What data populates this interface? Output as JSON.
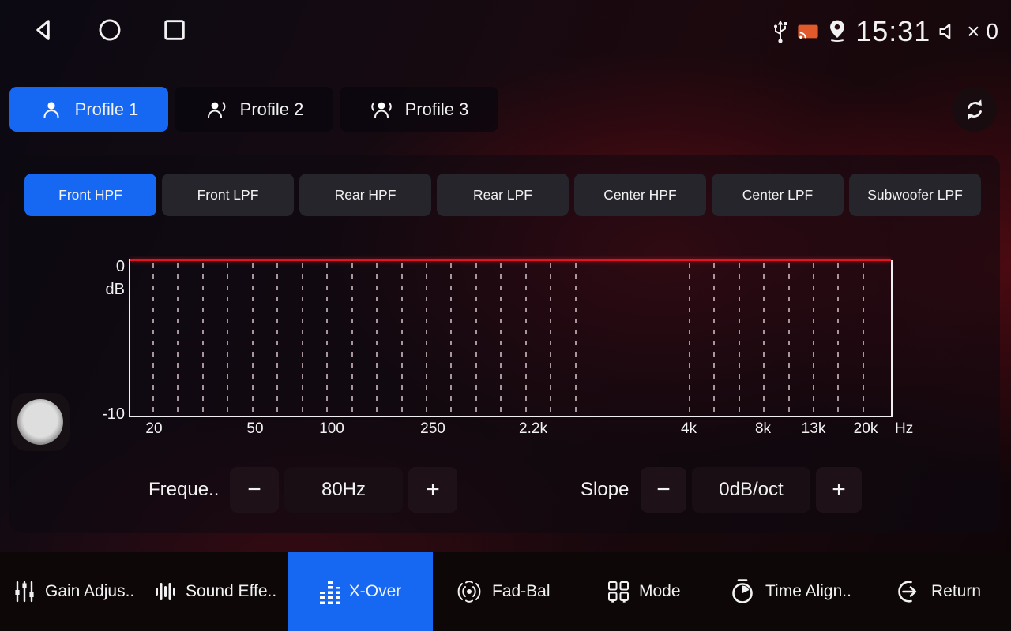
{
  "status_bar": {
    "time": "15:31",
    "volume_count": "× 0"
  },
  "profile_bar": {
    "profiles": [
      {
        "label": "Profile 1",
        "active": true
      },
      {
        "label": "Profile 2",
        "active": false
      },
      {
        "label": "Profile 3",
        "active": false
      }
    ]
  },
  "filter_tabs": [
    {
      "label": "Front HPF",
      "active": true
    },
    {
      "label": "Front LPF",
      "active": false
    },
    {
      "label": "Rear HPF",
      "active": false
    },
    {
      "label": "Rear LPF",
      "active": false
    },
    {
      "label": "Center HPF",
      "active": false
    },
    {
      "label": "Center LPF",
      "active": false
    },
    {
      "label": "Subwoofer LPF",
      "active": false
    }
  ],
  "chart_data": {
    "type": "line",
    "ylabel": "dB",
    "y_ticks": [
      "0",
      "-10"
    ],
    "ylim": [
      -10,
      0
    ],
    "x_unit": "Hz",
    "x_scale": "log",
    "x_tick_labels": [
      "20",
      "50",
      "100",
      "250",
      "2.2k",
      "4k",
      "8k",
      "13k",
      "20k"
    ],
    "x": [
      20,
      50,
      100,
      250,
      2200,
      4000,
      8000,
      13000,
      20000
    ],
    "series": [
      {
        "name": "Front HPF response",
        "values": [
          0,
          0,
          0,
          0,
          0,
          0,
          0,
          0,
          0
        ],
        "color": "#e01422"
      }
    ],
    "grid": "dashed-vertical",
    "legend": "none"
  },
  "controls": {
    "frequency": {
      "label": "Freque..",
      "value": "80Hz",
      "minus": "−",
      "plus": "+"
    },
    "slope": {
      "label": "Slope",
      "value": "0dB/oct",
      "minus": "−",
      "plus": "+"
    }
  },
  "bottom_nav": [
    {
      "label": "Gain Adjus..",
      "icon": "gain-sliders-icon",
      "active": false
    },
    {
      "label": "Sound Effe..",
      "icon": "sound-effect-bars-icon",
      "active": false
    },
    {
      "label": "X-Over",
      "icon": "equalizer-bars-icon",
      "active": true
    },
    {
      "label": "Fad-Bal",
      "icon": "fader-balance-icon",
      "active": false
    },
    {
      "label": "Mode",
      "icon": "mode-grid-icon",
      "active": false
    },
    {
      "label": "Time Align..",
      "icon": "stopwatch-icon",
      "active": false
    },
    {
      "label": "Return",
      "icon": "return-arrow-icon",
      "active": false
    }
  ],
  "colors": {
    "accent_blue": "#1667f2",
    "curve_red": "#e01422",
    "cast_orange": "#e05a2b"
  }
}
